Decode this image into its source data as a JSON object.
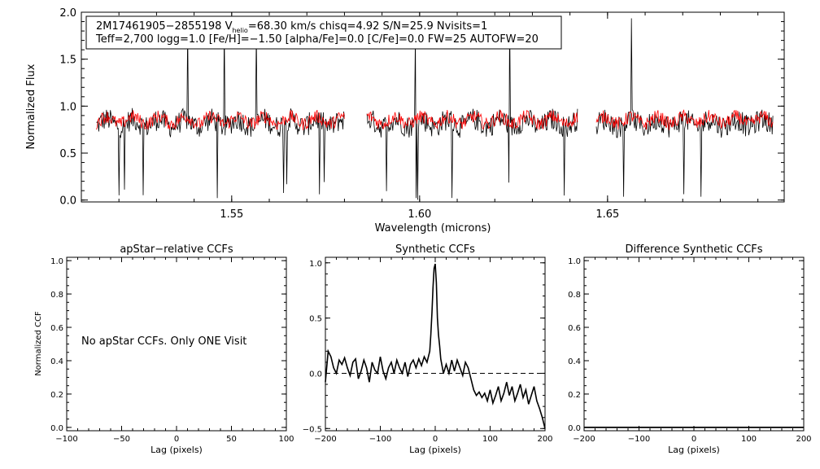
{
  "chart_data": [
    {
      "type": "line",
      "id": "spectrum",
      "xlabel": "Wavelength (microns)",
      "ylabel": "Normalized Flux",
      "xlim": [
        1.51,
        1.697
      ],
      "ylim": [
        -0.02,
        2.0
      ],
      "xticks": [
        1.55,
        1.6,
        1.65
      ],
      "xtick_labels": [
        "1.55",
        "1.60",
        "1.65"
      ],
      "yticks": [
        0.0,
        0.5,
        1.0,
        1.5,
        2.0
      ],
      "ytick_labels": [
        "0.0",
        "0.5",
        "1.0",
        "1.5",
        "2.0"
      ],
      "annotation": {
        "line1_a": "2M17461905−2855198  V",
        "line1_sub": "helio",
        "line1_b": "=68.30 km/s  chisq=4.92  S/N=25.9  Nvisits=1",
        "line2": "Teff=2,700 logg=1.0 [Fe/H]=−1.50 [alpha/Fe]=0.0 [C/Fe]=0.0 FW=25 AUTOFW=20"
      },
      "chips": [
        [
          1.514,
          1.58
        ],
        [
          1.586,
          1.642
        ],
        [
          1.647,
          1.694
        ]
      ],
      "series": [
        {
          "name": "observed",
          "color": "#000000",
          "baseline": 0.82,
          "noise": 0.12
        },
        {
          "name": "model",
          "color": "#ff0000",
          "baseline": 0.85,
          "noise": 0.07
        }
      ]
    },
    {
      "type": "line",
      "id": "apstar",
      "title": "apStar−relative CCFs",
      "xlabel": "Lag (pixels)",
      "ylabel": "Normalized CCF",
      "xlim": [
        -100,
        100
      ],
      "ylim": [
        -0.02,
        1.02
      ],
      "xticks": [
        -100,
        -50,
        0,
        50,
        100
      ],
      "xtick_labels": [
        "−100",
        "−50",
        "0",
        "50",
        "100"
      ],
      "yticks": [
        0.0,
        0.2,
        0.4,
        0.6,
        0.8,
        1.0
      ],
      "ytick_labels": [
        "0.0",
        "0.2",
        "0.4",
        "0.6",
        "0.8",
        "1.0"
      ],
      "annotation": "No apStar CCFs.  Only ONE Visit"
    },
    {
      "type": "line",
      "id": "synthetic",
      "title": "Synthetic CCFs",
      "xlabel": "Lag (pixels)",
      "xlim": [
        -200,
        200
      ],
      "ylim": [
        -0.52,
        1.05
      ],
      "xticks": [
        -200,
        -100,
        0,
        100,
        200
      ],
      "xtick_labels": [
        "−200",
        "−100",
        "0",
        "100",
        "200"
      ],
      "yticks": [
        -0.5,
        0.0,
        0.5,
        1.0
      ],
      "ytick_labels": [
        "−0.5",
        "0.0",
        "0.5",
        "1.0"
      ],
      "zero_line": 0.0,
      "x": [
        -200,
        -195,
        -190,
        -185,
        -180,
        -175,
        -170,
        -165,
        -160,
        -155,
        -150,
        -145,
        -140,
        -135,
        -130,
        -125,
        -120,
        -115,
        -110,
        -105,
        -100,
        -95,
        -90,
        -85,
        -80,
        -75,
        -70,
        -65,
        -60,
        -55,
        -50,
        -45,
        -40,
        -35,
        -30,
        -25,
        -20,
        -15,
        -10,
        -8,
        -6,
        -4,
        -2,
        0,
        2,
        4,
        6,
        8,
        10,
        15,
        20,
        25,
        30,
        35,
        40,
        45,
        50,
        55,
        60,
        65,
        70,
        75,
        80,
        85,
        90,
        95,
        100,
        105,
        110,
        115,
        120,
        125,
        130,
        135,
        140,
        145,
        150,
        155,
        160,
        165,
        170,
        175,
        180,
        185,
        190,
        195,
        200
      ],
      "y": [
        -0.08,
        0.2,
        0.15,
        0.05,
        0.0,
        0.12,
        0.08,
        0.14,
        0.05,
        -0.02,
        0.1,
        0.13,
        -0.05,
        0.02,
        0.12,
        0.05,
        -0.08,
        0.1,
        0.03,
        0.0,
        0.15,
        0.02,
        -0.05,
        0.05,
        0.1,
        0.0,
        0.12,
        0.05,
        0.0,
        0.1,
        -0.03,
        0.08,
        0.12,
        0.05,
        0.13,
        0.07,
        0.15,
        0.1,
        0.2,
        0.35,
        0.55,
        0.78,
        0.95,
        0.99,
        0.82,
        0.5,
        0.35,
        0.25,
        0.13,
        0.0,
        0.08,
        0.0,
        0.12,
        0.02,
        0.12,
        0.05,
        -0.02,
        0.1,
        0.05,
        -0.05,
        -0.15,
        -0.2,
        -0.17,
        -0.22,
        -0.18,
        -0.25,
        -0.15,
        -0.27,
        -0.2,
        -0.12,
        -0.25,
        -0.18,
        -0.08,
        -0.2,
        -0.12,
        -0.25,
        -0.18,
        -0.1,
        -0.22,
        -0.15,
        -0.28,
        -0.2,
        -0.12,
        -0.25,
        -0.32,
        -0.4,
        -0.5
      ]
    },
    {
      "type": "line",
      "id": "difference",
      "title": "Difference Synthetic CCFs",
      "xlabel": "Lag (pixels)",
      "xlim": [
        -200,
        200
      ],
      "ylim": [
        -0.02,
        1.02
      ],
      "xticks": [
        -200,
        -100,
        0,
        100,
        200
      ],
      "xtick_labels": [
        "−200",
        "−100",
        "0",
        "100",
        "200"
      ],
      "yticks": [
        0.0,
        0.2,
        0.4,
        0.6,
        0.8,
        1.0
      ],
      "ytick_labels": [
        "0.0",
        "0.2",
        "0.4",
        "0.6",
        "0.8",
        "1.0"
      ],
      "x": [
        -200,
        200
      ],
      "y": [
        0.0,
        0.0
      ]
    }
  ]
}
